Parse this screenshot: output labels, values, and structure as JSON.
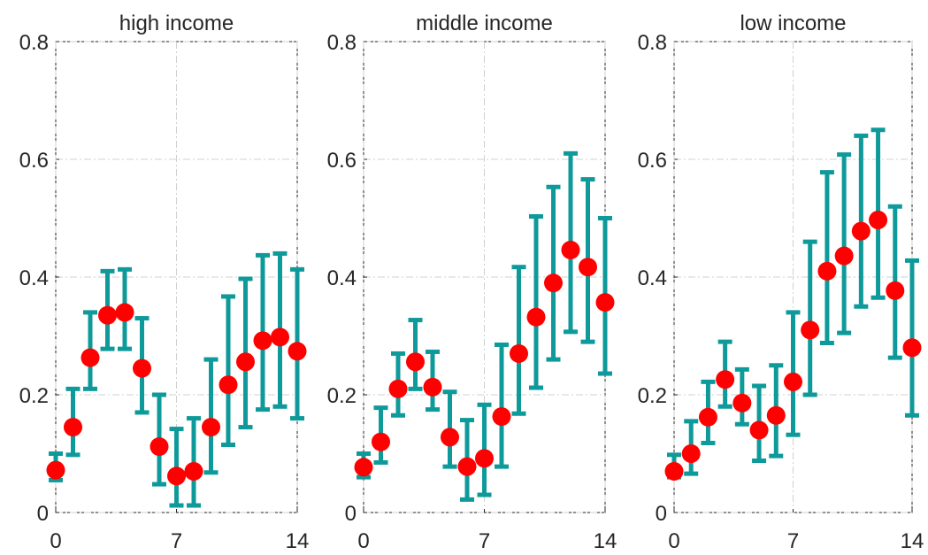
{
  "chart_data": [
    {
      "type": "errorbar",
      "title": "high income",
      "x": [
        0,
        1,
        2,
        3,
        4,
        5,
        6,
        7,
        8,
        9,
        10,
        11,
        12,
        13,
        14
      ],
      "series": [
        {
          "color": "#ff0000",
          "error_color": "#0e9a9a",
          "values": [
            0.072,
            0.145,
            0.263,
            0.335,
            0.34,
            0.245,
            0.112,
            0.062,
            0.07,
            0.145,
            0.217,
            0.256,
            0.292,
            0.298,
            0.274
          ],
          "lower": [
            0.055,
            0.098,
            0.21,
            0.278,
            0.278,
            0.17,
            0.048,
            0.012,
            0.012,
            0.068,
            0.115,
            0.145,
            0.175,
            0.18,
            0.16
          ],
          "upper": [
            0.1,
            0.21,
            0.34,
            0.41,
            0.413,
            0.33,
            0.2,
            0.142,
            0.16,
            0.26,
            0.367,
            0.397,
            0.437,
            0.44,
            0.413
          ]
        }
      ],
      "xlim": [
        0,
        14
      ],
      "xticks": [
        0,
        7,
        14
      ],
      "ylim": [
        0,
        0.8
      ],
      "yticks": [
        0,
        0.2,
        0.4,
        0.6,
        0.8
      ],
      "grid": true
    },
    {
      "type": "errorbar",
      "title": "middle income",
      "x": [
        0,
        1,
        2,
        3,
        4,
        5,
        6,
        7,
        8,
        9,
        10,
        11,
        12,
        13,
        14
      ],
      "series": [
        {
          "color": "#ff0000",
          "error_color": "#0e9a9a",
          "values": [
            0.077,
            0.12,
            0.21,
            0.256,
            0.213,
            0.128,
            0.078,
            0.092,
            0.163,
            0.27,
            0.332,
            0.39,
            0.446,
            0.417,
            0.357
          ],
          "lower": [
            0.06,
            0.085,
            0.165,
            0.21,
            0.175,
            0.078,
            0.022,
            0.03,
            0.078,
            0.168,
            0.212,
            0.26,
            0.307,
            0.29,
            0.236
          ],
          "upper": [
            0.1,
            0.178,
            0.27,
            0.327,
            0.273,
            0.205,
            0.157,
            0.183,
            0.285,
            0.417,
            0.503,
            0.553,
            0.61,
            0.566,
            0.5
          ]
        }
      ],
      "xlim": [
        0,
        14
      ],
      "xticks": [
        0,
        7,
        14
      ],
      "ylim": [
        0,
        0.8
      ],
      "yticks": [
        0,
        0.2,
        0.4,
        0.6,
        0.8
      ],
      "grid": true
    },
    {
      "type": "errorbar",
      "title": "low income",
      "x": [
        0,
        1,
        2,
        3,
        4,
        5,
        6,
        7,
        8,
        9,
        10,
        11,
        12,
        13,
        14
      ],
      "series": [
        {
          "color": "#ff0000",
          "error_color": "#0e9a9a",
          "values": [
            0.07,
            0.1,
            0.162,
            0.226,
            0.186,
            0.14,
            0.165,
            0.222,
            0.31,
            0.41,
            0.436,
            0.478,
            0.497,
            0.377,
            0.28
          ],
          "lower": [
            0.06,
            0.066,
            0.118,
            0.18,
            0.15,
            0.088,
            0.096,
            0.132,
            0.2,
            0.288,
            0.305,
            0.35,
            0.365,
            0.263,
            0.165
          ],
          "upper": [
            0.098,
            0.155,
            0.222,
            0.29,
            0.243,
            0.215,
            0.25,
            0.34,
            0.46,
            0.578,
            0.608,
            0.64,
            0.65,
            0.52,
            0.428
          ]
        }
      ],
      "xlim": [
        0,
        14
      ],
      "xticks": [
        0,
        7,
        14
      ],
      "ylim": [
        0,
        0.8
      ],
      "yticks": [
        0,
        0.2,
        0.4,
        0.6,
        0.8
      ],
      "grid": true
    }
  ]
}
